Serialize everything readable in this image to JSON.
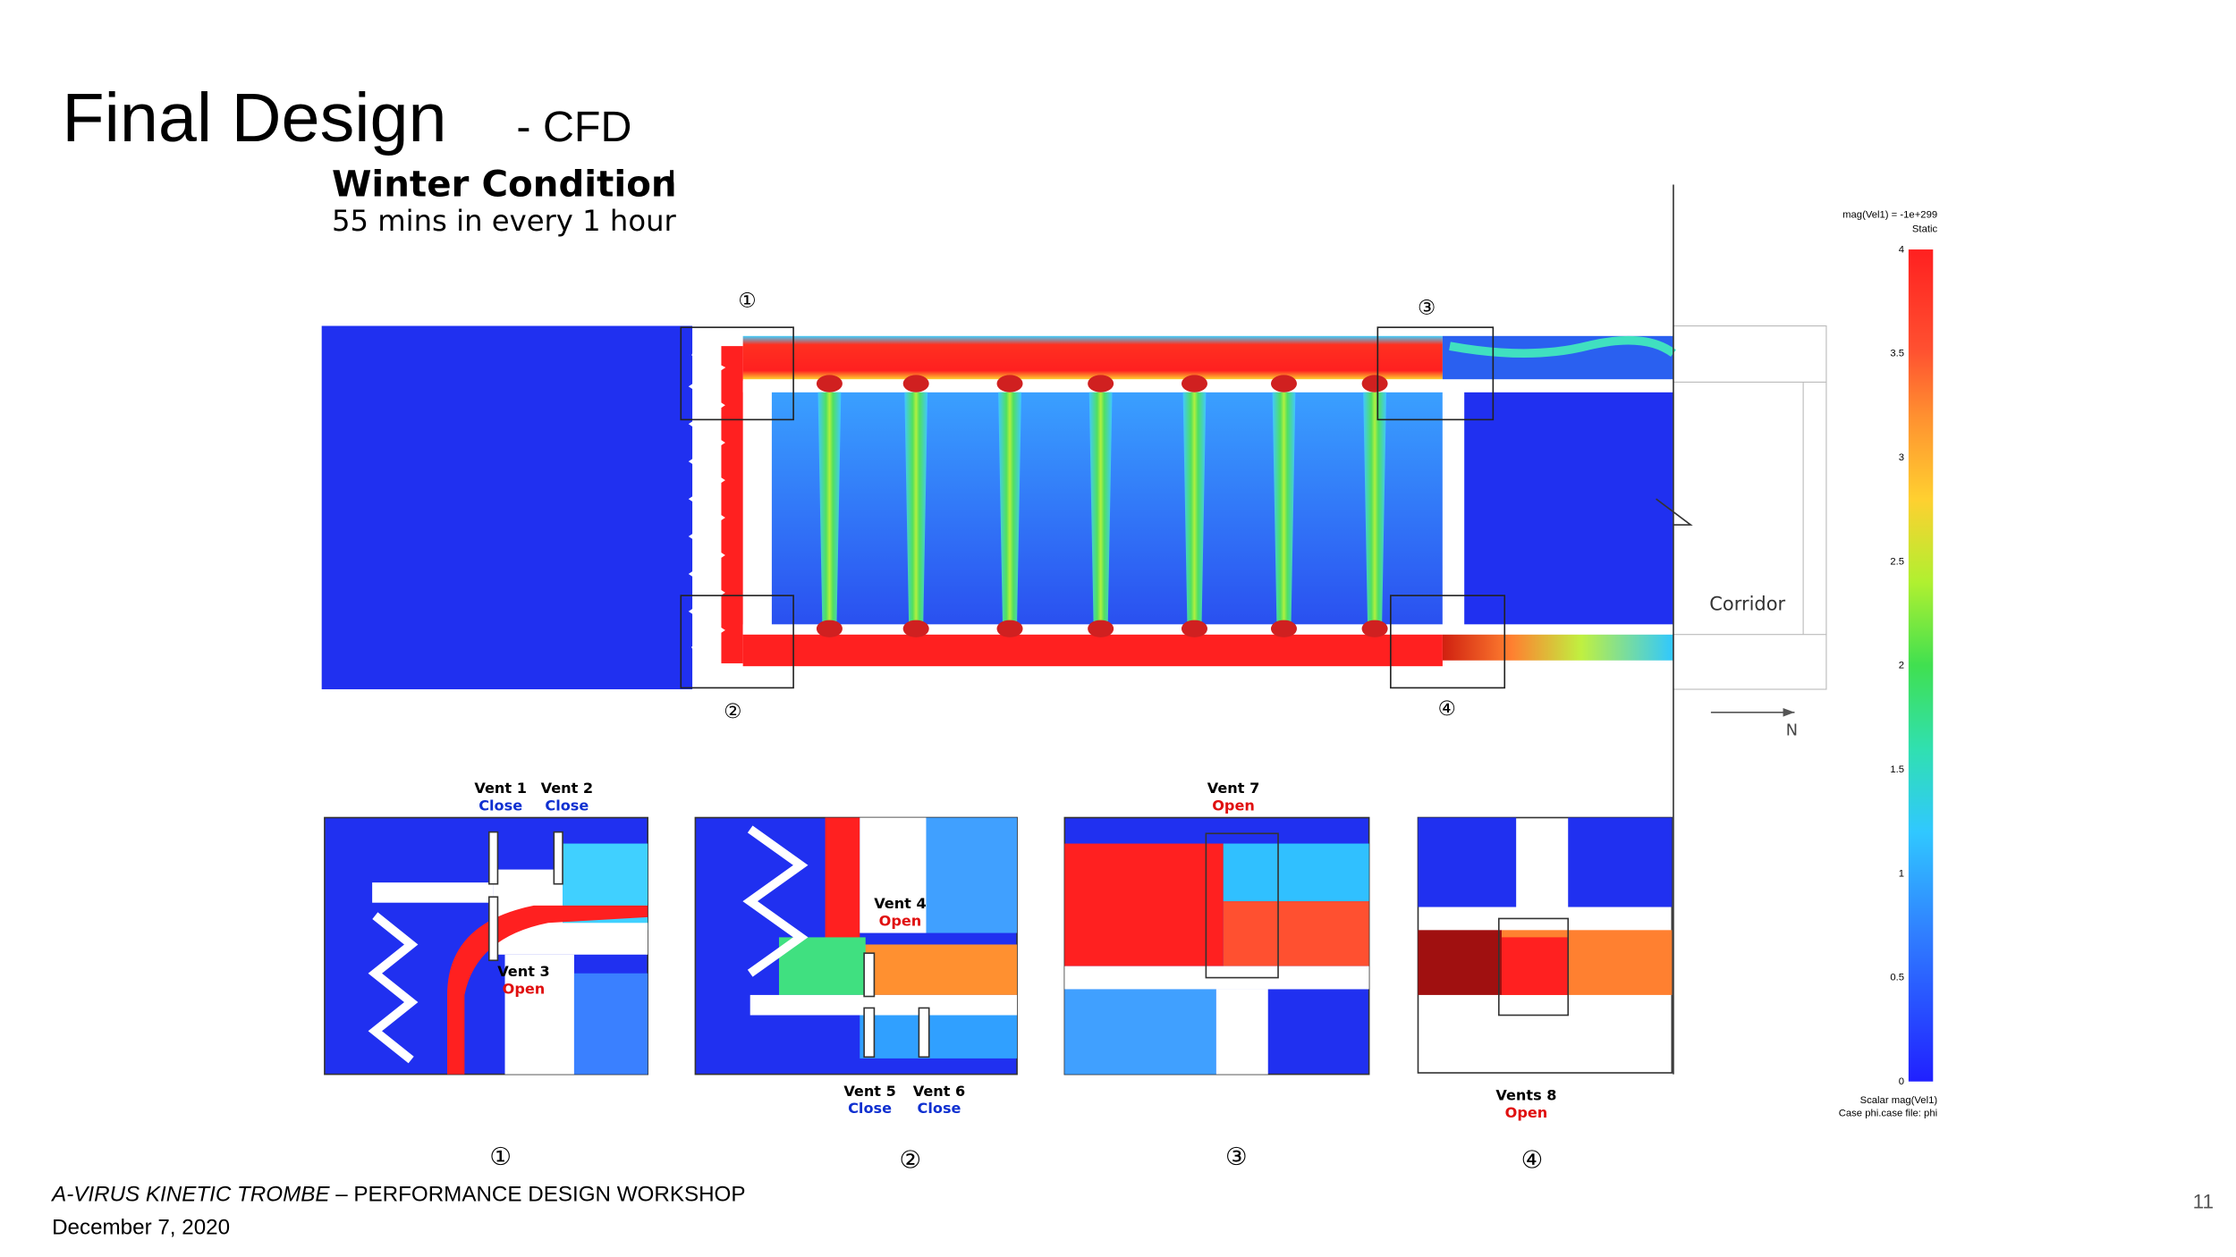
{
  "header": {
    "title": "Final Design",
    "title_suffix": "- CFD",
    "condition": "Winter Condition",
    "condition_mark": "I",
    "schedule": "55 mins in every 1 hour"
  },
  "plan": {
    "markers": [
      "①",
      "②",
      "③",
      "④"
    ],
    "corridor": "Corridor",
    "north": "N"
  },
  "colorbar": {
    "header": "mag(Vel1) = -1e+299",
    "subheader": "Static",
    "ticks": [
      "4",
      "3.5",
      "3",
      "2.5",
      "2",
      "1.5",
      "1",
      "0.5",
      "0"
    ],
    "footer": [
      "Scalar mag(Vel1)",
      "Case phi.case file: phi"
    ]
  },
  "details": {
    "markers": [
      "①",
      "②",
      "③",
      "④"
    ],
    "vents": [
      {
        "name": "Vent 1",
        "state": "Close"
      },
      {
        "name": "Vent 2",
        "state": "Close"
      },
      {
        "name": "Vent 3",
        "state": "Open"
      },
      {
        "name": "Vent 4",
        "state": "Open"
      },
      {
        "name": "Vent 5",
        "state": "Close"
      },
      {
        "name": "Vent 6",
        "state": "Close"
      },
      {
        "name": "Vent 7",
        "state": "Open"
      },
      {
        "name": "Vents 8",
        "state": "Open"
      }
    ]
  },
  "footer": {
    "project": "A-VIRUS KINETIC TROMBE",
    "workshop": " – PERFORMANCE DESIGN WORKSHOP",
    "date": "December 7, 2020",
    "page": "11"
  }
}
